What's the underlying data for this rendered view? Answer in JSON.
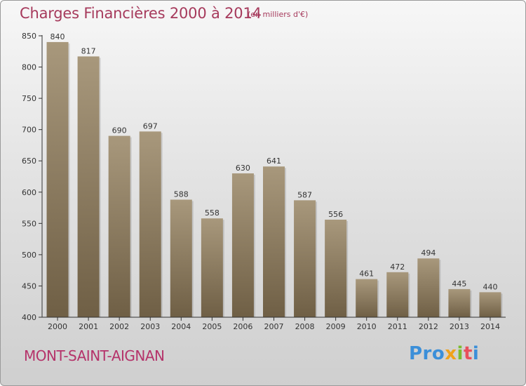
{
  "header": {
    "title": "Charges Financières 2000 à 2014",
    "subtitle": "(en milliers d'€)"
  },
  "footer": {
    "commune": "MONT-SAINT-AIGNAN",
    "logo_parts": [
      "Pro",
      "x",
      "i",
      "t",
      "i"
    ]
  },
  "colors": {
    "title": "#a63a5c",
    "commune": "#b5336a",
    "bar_top": "#a8987c",
    "bar_bottom": "#6f5f45"
  },
  "chart_data": {
    "type": "bar",
    "title": "Charges Financières 2000 à 2014",
    "subtitle": "(en milliers d'€)",
    "categories": [
      "2000",
      "2001",
      "2002",
      "2003",
      "2004",
      "2005",
      "2006",
      "2007",
      "2008",
      "2009",
      "2010",
      "2011",
      "2012",
      "2013",
      "2014"
    ],
    "values": [
      840,
      817,
      690,
      697,
      588,
      558,
      630,
      641,
      587,
      556,
      461,
      472,
      494,
      445,
      440
    ],
    "ylim": [
      400,
      850
    ],
    "yticks": [
      400,
      450,
      500,
      550,
      600,
      650,
      700,
      750,
      800,
      850
    ],
    "grid": false,
    "legend": "none"
  }
}
